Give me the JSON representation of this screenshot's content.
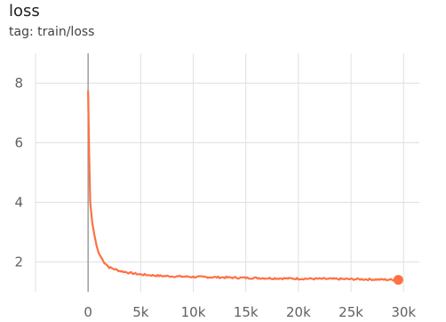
{
  "header": {
    "title": "loss",
    "subtitle": "tag: train/loss"
  },
  "chart_data": {
    "type": "line",
    "title": "loss",
    "subtitle": "tag: train/loss",
    "xlabel": "",
    "ylabel": "",
    "xlim": [
      -5000,
      31500
    ],
    "ylim": [
      1.0,
      9.0
    ],
    "x_ticks": [
      0,
      5000,
      10000,
      15000,
      20000,
      25000,
      30000
    ],
    "x_tick_labels": [
      "0",
      "5k",
      "10k",
      "15k",
      "20k",
      "25k",
      "30k"
    ],
    "y_ticks": [
      2,
      4,
      6,
      8
    ],
    "y_tick_labels": [
      "2",
      "4",
      "6",
      "8"
    ],
    "grid": true,
    "legend": "none",
    "series": [
      {
        "color": "#ff7043",
        "x": [
          0,
          100,
          200,
          400,
          600,
          800,
          1000,
          1500,
          2000,
          3000,
          4000,
          5000,
          7000,
          10000,
          13000,
          16000,
          20000,
          23000,
          26000,
          29500
        ],
        "y": [
          7.75,
          5.6,
          4.0,
          3.3,
          2.9,
          2.55,
          2.3,
          2.0,
          1.82,
          1.7,
          1.63,
          1.58,
          1.53,
          1.5,
          1.48,
          1.46,
          1.44,
          1.43,
          1.42,
          1.4
        ]
      }
    ],
    "colors": {
      "line": "#ff7043",
      "grid": "#e0e0e0",
      "zero_axis": "#9e9e9e",
      "tick_text": "#616161"
    }
  }
}
